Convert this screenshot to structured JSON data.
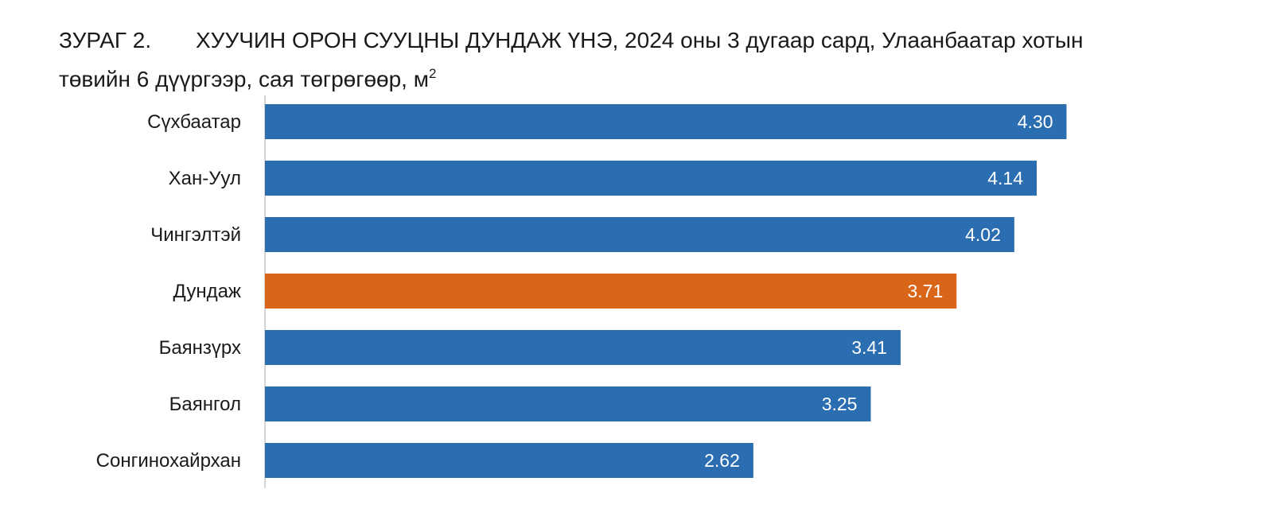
{
  "title": {
    "figure_label": "ЗУРАГ 2.",
    "line1": "ХУУЧИН ОРОН СУУЦНЫ ДУНДАЖ ҮНЭ, 2024 оны 3 дугаар сард, Улаанбаатар хотын",
    "line2": "төвийн 6 дүүргээр, сая төгрөгөөр, м",
    "line2_superscript": "2"
  },
  "chart_data": {
    "type": "bar",
    "orientation": "horizontal",
    "categories": [
      "Сүхбаатар",
      "Хан-Уул",
      "Чингэлтэй",
      "Дундаж",
      "Баянзүрх",
      "Баянгол",
      "Сонгинохайрхан"
    ],
    "values": [
      4.3,
      4.14,
      4.02,
      3.71,
      3.41,
      3.25,
      2.62
    ],
    "data_labels": [
      "4.30",
      "4.14",
      "4.02",
      "3.71",
      "3.41",
      "3.25",
      "2.62"
    ],
    "highlight_category": "Дундаж",
    "colors": {
      "bar": "#2a6db0",
      "highlight": "#d96518",
      "axis": "#c8c8c8",
      "label_text": "#ffffff"
    },
    "xlim": [
      0,
      4.5
    ],
    "grid": false,
    "legend": "none"
  }
}
